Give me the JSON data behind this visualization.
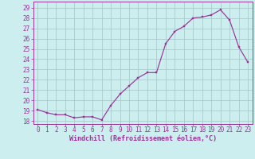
{
  "x": [
    0,
    1,
    2,
    3,
    4,
    5,
    6,
    7,
    8,
    9,
    10,
    11,
    12,
    13,
    14,
    15,
    16,
    17,
    18,
    19,
    20,
    21,
    22,
    23
  ],
  "y": [
    19.1,
    18.8,
    18.6,
    18.6,
    18.3,
    18.4,
    18.4,
    18.1,
    19.5,
    20.6,
    21.4,
    22.2,
    22.7,
    22.7,
    25.5,
    26.7,
    27.2,
    28.0,
    28.1,
    28.3,
    28.8,
    27.8,
    25.2,
    23.7
  ],
  "line_color": "#993399",
  "marker": "s",
  "marker_size": 2.0,
  "bg_color": "#cceeee",
  "grid_color": "#aacccc",
  "ylabel_ticks": [
    18,
    19,
    20,
    21,
    22,
    23,
    24,
    25,
    26,
    27,
    28,
    29
  ],
  "ylim": [
    17.7,
    29.6
  ],
  "xlim": [
    -0.5,
    23.5
  ],
  "xlabel": "Windchill (Refroidissement éolien,°C)",
  "xtick_labels": [
    "0",
    "1",
    "2",
    "3",
    "4",
    "5",
    "6",
    "7",
    "8",
    "9",
    "10",
    "11",
    "12",
    "13",
    "14",
    "15",
    "16",
    "17",
    "18",
    "19",
    "20",
    "21",
    "22",
    "23"
  ],
  "tick_color": "#993399",
  "label_fontsize": 5.5,
  "xlabel_fontsize": 6.0,
  "linewidth": 0.85,
  "spine_color": "#993399"
}
